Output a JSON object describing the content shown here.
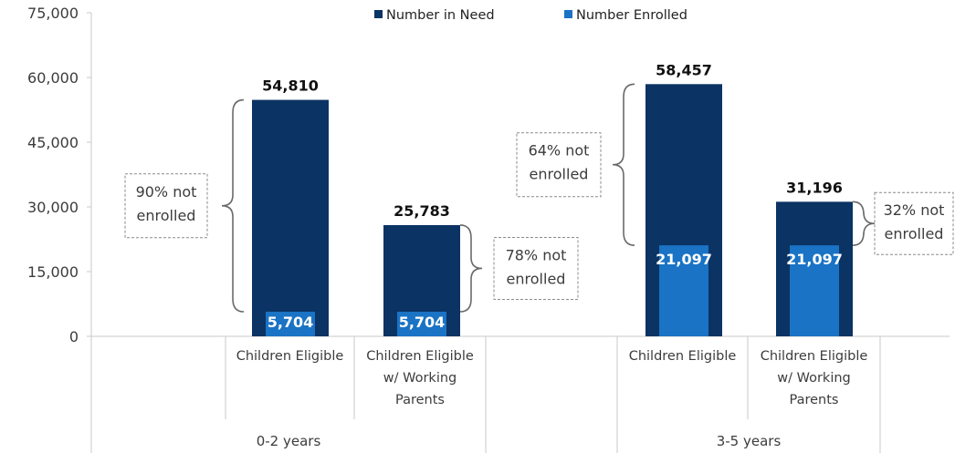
{
  "chart_data": {
    "type": "bar",
    "title": "",
    "xlabel": "",
    "ylabel": "",
    "ylim": [
      0,
      75000
    ],
    "yticks": [
      0,
      15000,
      30000,
      45000,
      60000,
      75000
    ],
    "ytick_labels": [
      "0",
      "15,000",
      "30,000",
      "45,000",
      "60,000",
      "75,000"
    ],
    "grid": false,
    "legend_position": "top",
    "bar_mode": "overlap",
    "groups": [
      {
        "label": "0-2 years",
        "categories": [
          [
            "Children Eligible"
          ],
          [
            "Children Eligible",
            "w/ Working",
            "Parents"
          ]
        ]
      },
      {
        "label": "3-5 years",
        "categories": [
          [
            "Children Eligible"
          ],
          [
            "Children Eligible",
            "w/ Working",
            "Parents"
          ]
        ]
      }
    ],
    "series": [
      {
        "name": "Number in Need",
        "color": "#0b3363",
        "values": [
          54810,
          25783,
          58457,
          31196
        ],
        "labels": [
          "54,810",
          "25,783",
          "58,457",
          "31,196"
        ]
      },
      {
        "name": "Number Enrolled",
        "color": "#1a73c4",
        "values": [
          5704,
          5704,
          21097,
          21097
        ],
        "labels": [
          "5,704",
          "5,704",
          "21,097",
          "21,097"
        ]
      }
    ],
    "annotations": [
      {
        "bar": 0,
        "lines": [
          "90% not",
          "enrolled"
        ],
        "side": "left"
      },
      {
        "bar": 1,
        "lines": [
          "78% not",
          "enrolled"
        ],
        "side": "right"
      },
      {
        "bar": 2,
        "lines": [
          "64% not",
          "enrolled"
        ],
        "side": "left"
      },
      {
        "bar": 3,
        "lines": [
          "32% not",
          "enrolled"
        ],
        "side": "right"
      }
    ]
  }
}
